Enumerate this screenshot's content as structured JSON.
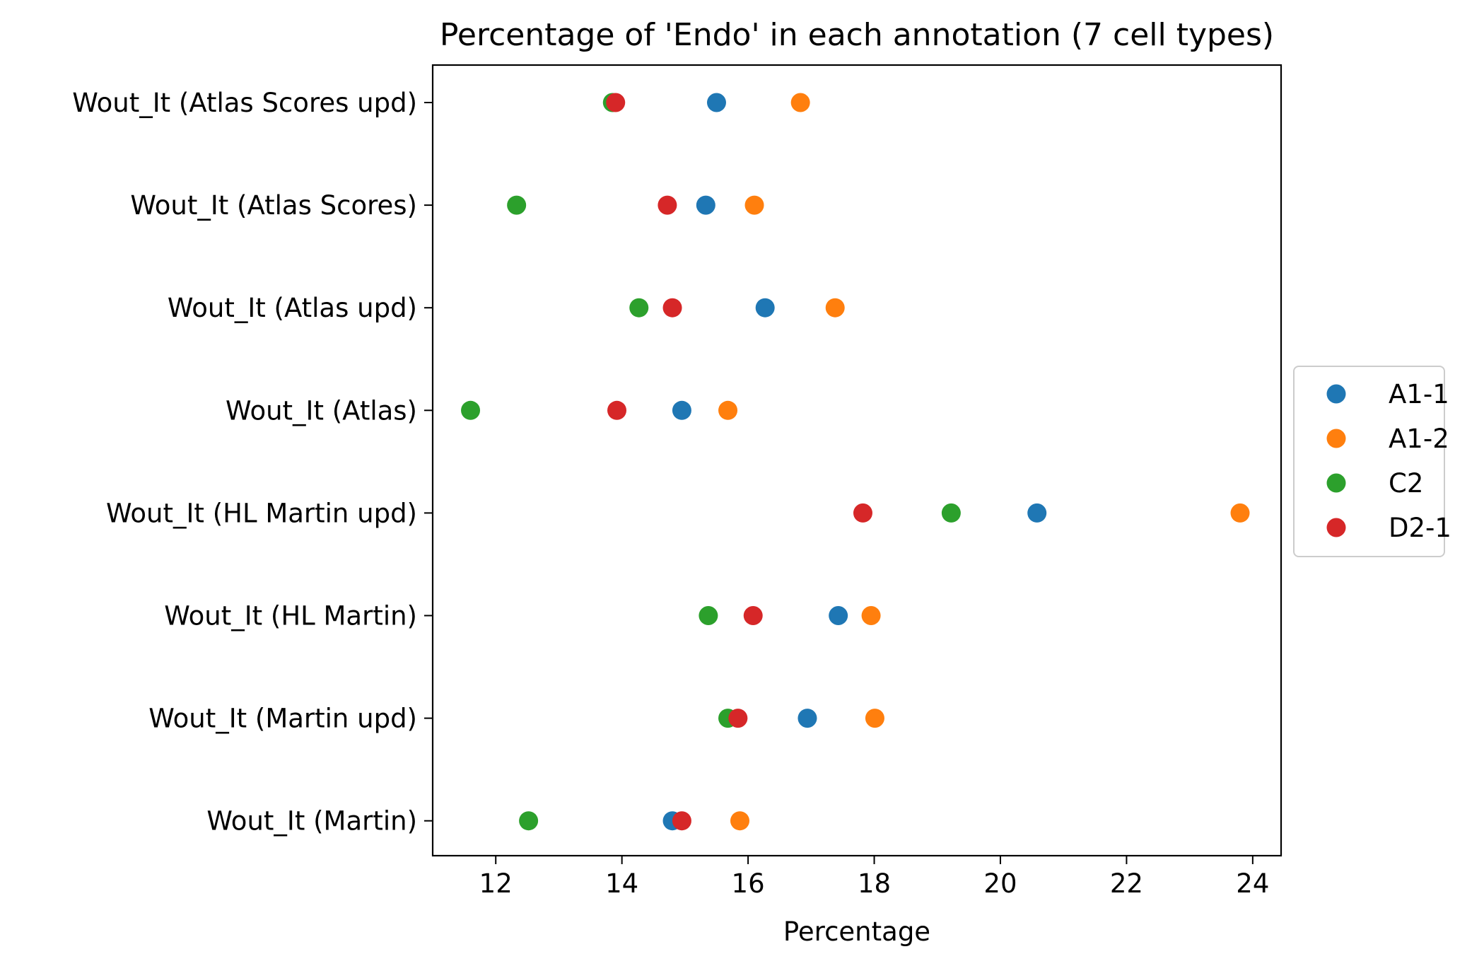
{
  "chart_data": {
    "type": "scatter",
    "title": "Percentage of 'Endo' in each annotation (7 cell types)",
    "xlabel": "Percentage",
    "ylabel": "",
    "xlim": [
      11,
      24.45
    ],
    "xticks": [
      12,
      14,
      16,
      18,
      20,
      22,
      24
    ],
    "xtick_labels": [
      "12",
      "14",
      "16",
      "18",
      "20",
      "22",
      "24"
    ],
    "categories": [
      "Wout_It (Atlas Scores upd)",
      "Wout_It (Atlas Scores)",
      "Wout_It (Atlas upd)",
      "Wout_It (Atlas)",
      "Wout_It (HL Martin upd)",
      "Wout_It (HL Martin)",
      "Wout_It (Martin upd)",
      "Wout_It (Martin)"
    ],
    "grid": false,
    "legend_position": "center-right, outside plot",
    "series": [
      {
        "name": "A1-1",
        "color": "#1f77b4",
        "values": [
          15.5,
          15.33,
          16.27,
          14.95,
          20.58,
          17.43,
          16.94,
          14.8
        ]
      },
      {
        "name": "A1-2",
        "color": "#ff7f0e",
        "values": [
          16.83,
          16.1,
          17.38,
          15.68,
          23.8,
          17.95,
          18.01,
          15.87
        ]
      },
      {
        "name": "C2",
        "color": "#2ca02c",
        "values": [
          13.85,
          12.33,
          14.27,
          11.6,
          19.22,
          15.37,
          15.68,
          12.52
        ]
      },
      {
        "name": "D2-1",
        "color": "#d62728",
        "values": [
          13.9,
          14.72,
          14.8,
          13.92,
          17.82,
          16.08,
          15.84,
          14.95
        ]
      }
    ]
  }
}
